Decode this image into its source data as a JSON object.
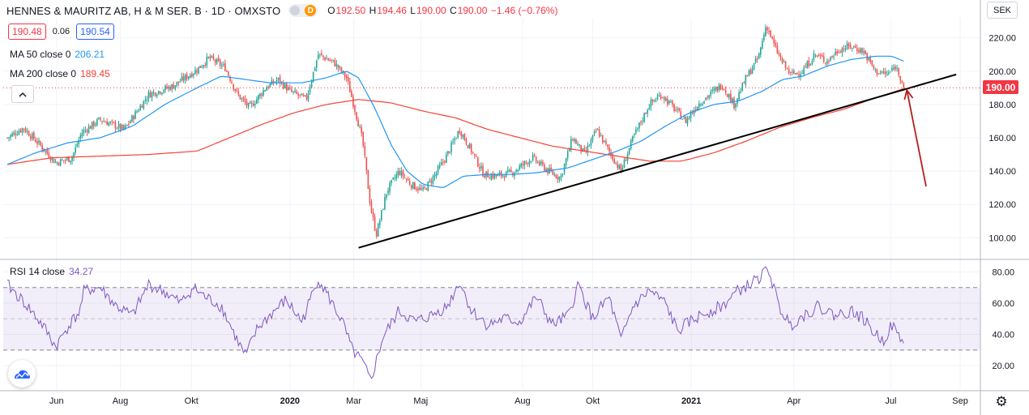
{
  "header": {
    "symbol": "HENNES & MAURITZ AB, H & M SER. B · 1D · OMXSTO",
    "badge": "D",
    "ohlc": {
      "o_label": "O",
      "o": "192.50",
      "h_label": "H",
      "h": "194.46",
      "l_label": "L",
      "l": "190.00",
      "c_label": "C",
      "c": "190.00",
      "change": "−1.46 (−0.76%)"
    },
    "bid": "190.48",
    "spread": "0.06",
    "ask": "190.54"
  },
  "indicators": {
    "ma50_label": "MA 50 close 0",
    "ma50_value": "206.21",
    "ma200_label": "MA 200 close 0",
    "ma200_value": "189.45",
    "rsi_label": "RSI 14 close",
    "rsi_value": "34.27"
  },
  "currency_button": "SEK",
  "price_tag": "190.00",
  "colors": {
    "up": "#26a69a",
    "down": "#ef5350",
    "ma50": "#2196f3",
    "ma200": "#f44336",
    "rsi": "#7e57c2",
    "trend": "#000000",
    "arrow": "#b71c1c"
  },
  "chart_data": {
    "type": "candlestick",
    "title": "HENNES & MAURITZ AB, H & M SER. B · 1D · OMXSTO",
    "xlabel": "",
    "ylabel": "SEK",
    "ylim": [
      88,
      232
    ],
    "y_ticks": [
      "100.00",
      "120.00",
      "140.00",
      "160.00",
      "180.00",
      "200.00",
      "220.00"
    ],
    "x_ticks": [
      "Jun",
      "Aug",
      "Okt",
      "2020",
      "Mar",
      "Maj",
      "Aug",
      "Okt",
      "2021",
      "Apr",
      "Jul",
      "Sep"
    ],
    "x_tick_pos": [
      0.066,
      0.145,
      0.233,
      0.355,
      0.434,
      0.517,
      0.643,
      0.73,
      0.852,
      0.979,
      1.099,
      1.185
    ],
    "x_domain": [
      0.0,
      1.21
    ],
    "price_anchors": [
      [
        0.005,
        160
      ],
      [
        0.025,
        166
      ],
      [
        0.045,
        156
      ],
      [
        0.065,
        145
      ],
      [
        0.085,
        148
      ],
      [
        0.097,
        163
      ],
      [
        0.12,
        171
      ],
      [
        0.15,
        165
      ],
      [
        0.18,
        186
      ],
      [
        0.21,
        191
      ],
      [
        0.24,
        201
      ],
      [
        0.255,
        208
      ],
      [
        0.275,
        202
      ],
      [
        0.29,
        186
      ],
      [
        0.305,
        178
      ],
      [
        0.325,
        190
      ],
      [
        0.34,
        195
      ],
      [
        0.355,
        188
      ],
      [
        0.375,
        183
      ],
      [
        0.39,
        210
      ],
      [
        0.41,
        205
      ],
      [
        0.425,
        196
      ],
      [
        0.435,
        178
      ],
      [
        0.445,
        158
      ],
      [
        0.455,
        118
      ],
      [
        0.462,
        102
      ],
      [
        0.475,
        128
      ],
      [
        0.49,
        140
      ],
      [
        0.505,
        132
      ],
      [
        0.52,
        128
      ],
      [
        0.535,
        138
      ],
      [
        0.55,
        150
      ],
      [
        0.565,
        165
      ],
      [
        0.58,
        152
      ],
      [
        0.595,
        138
      ],
      [
        0.61,
        137
      ],
      [
        0.63,
        139
      ],
      [
        0.655,
        148
      ],
      [
        0.675,
        140
      ],
      [
        0.69,
        136
      ],
      [
        0.705,
        160
      ],
      [
        0.72,
        150
      ],
      [
        0.735,
        165
      ],
      [
        0.75,
        152
      ],
      [
        0.765,
        140
      ],
      [
        0.78,
        160
      ],
      [
        0.8,
        180
      ],
      [
        0.815,
        186
      ],
      [
        0.83,
        178
      ],
      [
        0.845,
        170
      ],
      [
        0.86,
        180
      ],
      [
        0.875,
        186
      ],
      [
        0.89,
        192
      ],
      [
        0.905,
        180
      ],
      [
        0.92,
        196
      ],
      [
        0.935,
        208
      ],
      [
        0.945,
        228
      ],
      [
        0.955,
        215
      ],
      [
        0.965,
        205
      ],
      [
        0.975,
        198
      ],
      [
        0.99,
        200
      ],
      [
        1.005,
        210
      ],
      [
        1.02,
        206
      ],
      [
        1.035,
        213
      ],
      [
        1.05,
        215
      ],
      [
        1.065,
        212
      ],
      [
        1.08,
        200
      ],
      [
        1.095,
        198
      ],
      [
        1.105,
        203
      ],
      [
        1.115,
        192
      ]
    ],
    "ma50_anchors": [
      [
        0.005,
        144
      ],
      [
        0.04,
        151
      ],
      [
        0.08,
        157
      ],
      [
        0.12,
        160
      ],
      [
        0.16,
        167
      ],
      [
        0.2,
        180
      ],
      [
        0.24,
        190
      ],
      [
        0.27,
        197
      ],
      [
        0.3,
        195
      ],
      [
        0.33,
        193
      ],
      [
        0.37,
        193
      ],
      [
        0.4,
        196
      ],
      [
        0.425,
        200
      ],
      [
        0.44,
        196
      ],
      [
        0.46,
        178
      ],
      [
        0.48,
        156
      ],
      [
        0.5,
        140
      ],
      [
        0.52,
        132
      ],
      [
        0.545,
        130
      ],
      [
        0.57,
        137
      ],
      [
        0.6,
        138
      ],
      [
        0.63,
        138
      ],
      [
        0.66,
        139
      ],
      [
        0.7,
        142
      ],
      [
        0.73,
        147
      ],
      [
        0.76,
        152
      ],
      [
        0.79,
        158
      ],
      [
        0.82,
        167
      ],
      [
        0.85,
        175
      ],
      [
        0.88,
        180
      ],
      [
        0.91,
        182
      ],
      [
        0.94,
        188
      ],
      [
        0.965,
        195
      ],
      [
        0.99,
        197
      ],
      [
        1.02,
        203
      ],
      [
        1.05,
        207
      ],
      [
        1.08,
        209
      ],
      [
        1.1,
        209
      ],
      [
        1.115,
        206
      ]
    ],
    "ma200_anchors": [
      [
        0.005,
        144
      ],
      [
        0.06,
        148
      ],
      [
        0.12,
        149
      ],
      [
        0.18,
        150
      ],
      [
        0.24,
        152
      ],
      [
        0.28,
        160
      ],
      [
        0.32,
        168
      ],
      [
        0.36,
        175
      ],
      [
        0.4,
        180
      ],
      [
        0.44,
        183
      ],
      [
        0.48,
        181
      ],
      [
        0.52,
        176
      ],
      [
        0.56,
        172
      ],
      [
        0.6,
        165
      ],
      [
        0.64,
        160
      ],
      [
        0.68,
        155
      ],
      [
        0.72,
        152
      ],
      [
        0.76,
        149
      ],
      [
        0.8,
        146
      ],
      [
        0.84,
        146
      ],
      [
        0.88,
        151
      ],
      [
        0.92,
        158
      ],
      [
        0.96,
        166
      ],
      [
        1.0,
        172
      ],
      [
        1.04,
        177
      ],
      [
        1.08,
        184
      ],
      [
        1.115,
        189.45
      ]
    ],
    "trendline": {
      "from": [
        0.44,
        94
      ],
      "to": [
        1.18,
        198
      ]
    },
    "current_price_line": 190.0,
    "rsi": {
      "ylim": [
        5,
        87
      ],
      "y_ticks": [
        "20.00",
        "40.00",
        "60.00",
        "80.00"
      ],
      "bands": [
        30,
        70
      ],
      "mid": 50,
      "anchors": [
        [
          0.005,
          72
        ],
        [
          0.03,
          58
        ],
        [
          0.05,
          45
        ],
        [
          0.065,
          32
        ],
        [
          0.08,
          45
        ],
        [
          0.095,
          55
        ],
        [
          0.1,
          68
        ],
        [
          0.12,
          70
        ],
        [
          0.14,
          58
        ],
        [
          0.16,
          52
        ],
        [
          0.18,
          72
        ],
        [
          0.2,
          67
        ],
        [
          0.22,
          60
        ],
        [
          0.235,
          70
        ],
        [
          0.25,
          64
        ],
        [
          0.27,
          58
        ],
        [
          0.29,
          36
        ],
        [
          0.3,
          26
        ],
        [
          0.315,
          44
        ],
        [
          0.33,
          52
        ],
        [
          0.35,
          62
        ],
        [
          0.37,
          48
        ],
        [
          0.39,
          76
        ],
        [
          0.405,
          62
        ],
        [
          0.42,
          48
        ],
        [
          0.432,
          30
        ],
        [
          0.445,
          22
        ],
        [
          0.455,
          10
        ],
        [
          0.47,
          38
        ],
        [
          0.49,
          55
        ],
        [
          0.51,
          48
        ],
        [
          0.53,
          52
        ],
        [
          0.55,
          58
        ],
        [
          0.565,
          74
        ],
        [
          0.58,
          55
        ],
        [
          0.6,
          46
        ],
        [
          0.62,
          50
        ],
        [
          0.64,
          48
        ],
        [
          0.66,
          64
        ],
        [
          0.68,
          46
        ],
        [
          0.7,
          52
        ],
        [
          0.712,
          72
        ],
        [
          0.73,
          50
        ],
        [
          0.75,
          64
        ],
        [
          0.765,
          36
        ],
        [
          0.78,
          58
        ],
        [
          0.8,
          68
        ],
        [
          0.82,
          60
        ],
        [
          0.835,
          42
        ],
        [
          0.85,
          48
        ],
        [
          0.87,
          54
        ],
        [
          0.89,
          58
        ],
        [
          0.91,
          68
        ],
        [
          0.925,
          72
        ],
        [
          0.94,
          78
        ],
        [
          0.948,
          82
        ],
        [
          0.96,
          58
        ],
        [
          0.975,
          46
        ],
        [
          0.99,
          52
        ],
        [
          1.01,
          58
        ],
        [
          1.03,
          52
        ],
        [
          1.05,
          55
        ],
        [
          1.065,
          50
        ],
        [
          1.08,
          40
        ],
        [
          1.09,
          36
        ],
        [
          1.1,
          46
        ],
        [
          1.115,
          34.27
        ]
      ]
    }
  }
}
